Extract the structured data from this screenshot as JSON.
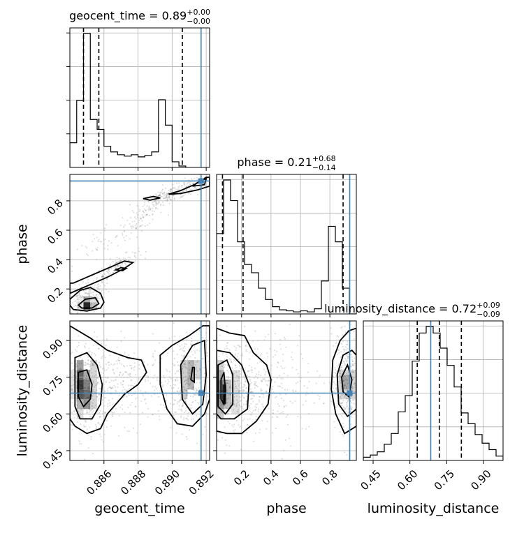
{
  "chart_data": {
    "type": "corner",
    "parameters": [
      "geocent_time",
      "phase",
      "luminosity_distance"
    ],
    "axis_labels": {
      "geocent_time": "geocent_time",
      "phase": "phase",
      "luminosity_distance": "luminosity_distance"
    },
    "ranges": {
      "geocent_time": [
        0.884,
        0.8922
      ],
      "phase": [
        0.03,
        0.98
      ],
      "luminosity_distance": [
        0.41,
        0.98
      ]
    },
    "ticks": {
      "geocent_time": [
        "0.886",
        "0.888",
        "0.890",
        "0.892"
      ],
      "phase": [
        "0.2",
        "0.4",
        "0.6",
        "0.8"
      ],
      "luminosity_distance": [
        "0.45",
        "0.60",
        "0.75",
        "0.90"
      ]
    },
    "truths": {
      "geocent_time": 0.8917,
      "phase": 0.935,
      "luminosity_distance": 0.685
    },
    "titles": [
      {
        "param": "geocent_time",
        "text": "geocent_time = 0.89",
        "sup": "+0.00",
        "sub": "−0.00"
      },
      {
        "param": "phase",
        "text": "phase = 0.21",
        "sup": "+0.68",
        "sub": "−0.14"
      },
      {
        "param": "luminosity_distance",
        "text": "luminosity_distance = 0.72",
        "sup": "+0.09",
        "sub": "−0.09"
      }
    ],
    "quantiles": {
      "geocent_time": [
        0.8848,
        0.8857,
        0.8906
      ],
      "phase": [
        0.07,
        0.21,
        0.89
      ],
      "luminosity_distance": [
        0.63,
        0.72,
        0.81
      ]
    },
    "histograms": {
      "geocent_time": {
        "edges_start": 0.884,
        "bin_width": 0.0004,
        "counts": [
          35,
          95,
          190,
          68,
          54,
          30,
          22,
          18,
          16,
          18,
          15,
          17,
          22,
          96,
          60,
          8,
          2
        ]
      },
      "phase": {
        "edges_start": 0.03,
        "bin_width": 0.0475,
        "counts": [
          78,
          130,
          110,
          70,
          48,
          40,
          25,
          14,
          7,
          4,
          3,
          2,
          3,
          2,
          5,
          32,
          85,
          70,
          25,
          0
        ]
      },
      "luminosity_distance": {
        "edges_start": 0.41,
        "bin_width": 0.0285,
        "counts": [
          3,
          5,
          8,
          15,
          25,
          45,
          60,
          92,
          118,
          124,
          118,
          104,
          88,
          68,
          44,
          34,
          24,
          16,
          10,
          4
        ]
      }
    },
    "grid": true
  }
}
